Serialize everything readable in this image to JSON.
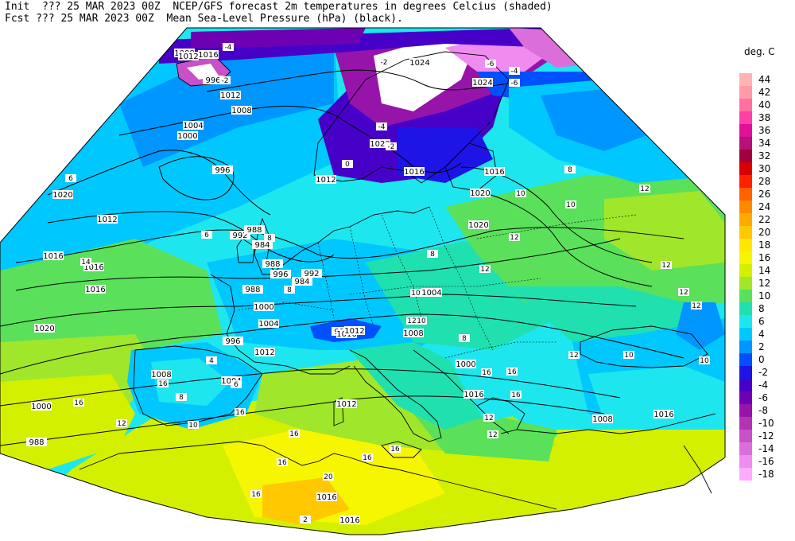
{
  "header": {
    "init_line": "Init  ??? 25 MAR 2023 00Z  NCEP/GFS forecast 2m temperatures in degrees Celcius (shaded)",
    "fcst_line": "Fcst ??? 25 MAR 2023 00Z  Mean Sea-Level Pressure (hPa) (black)."
  },
  "legend": {
    "title": "deg. C",
    "entries": [
      {
        "label": "44",
        "color": "#ffb3b3"
      },
      {
        "label": "42",
        "color": "#ff9aa8"
      },
      {
        "label": "40",
        "color": "#ff70a0"
      },
      {
        "label": "38",
        "color": "#ff3fa8"
      },
      {
        "label": "36",
        "color": "#e0109a"
      },
      {
        "label": "34",
        "color": "#b8107a"
      },
      {
        "label": "32",
        "color": "#a00040"
      },
      {
        "label": "30",
        "color": "#d80000"
      },
      {
        "label": "28",
        "color": "#ff2000"
      },
      {
        "label": "26",
        "color": "#ff6000"
      },
      {
        "label": "24",
        "color": "#ff8a00"
      },
      {
        "label": "22",
        "color": "#ffaa00"
      },
      {
        "label": "20",
        "color": "#ffc800"
      },
      {
        "label": "18",
        "color": "#ffe600"
      },
      {
        "label": "16",
        "color": "#f6f600"
      },
      {
        "label": "14",
        "color": "#d2f000"
      },
      {
        "label": "12",
        "color": "#a0e62a"
      },
      {
        "label": "10",
        "color": "#5ae05a"
      },
      {
        "label": "8",
        "color": "#20e0b0"
      },
      {
        "label": "6",
        "color": "#1ee6ee"
      },
      {
        "label": "4",
        "color": "#00c8ff"
      },
      {
        "label": "2",
        "color": "#0096ff"
      },
      {
        "label": "0",
        "color": "#0050ff"
      },
      {
        "label": "-2",
        "color": "#1e14e6"
      },
      {
        "label": "-4",
        "color": "#4600c8"
      },
      {
        "label": "-6",
        "color": "#6e00b4"
      },
      {
        "label": "-8",
        "color": "#9614aa"
      },
      {
        "label": "-10",
        "color": "#b432b4"
      },
      {
        "label": "-12",
        "color": "#c850c8"
      },
      {
        "label": "-14",
        "color": "#dc6edc"
      },
      {
        "label": "-16",
        "color": "#f08cf0"
      },
      {
        "label": "-18",
        "color": "#ffaaff"
      }
    ]
  },
  "pressure_labels": [
    "1016",
    "988",
    "996",
    "1016",
    "1012",
    "1008",
    "1004",
    "1000",
    "996",
    "992",
    "988",
    "984",
    "988",
    "996",
    "992",
    "984",
    "988",
    "1000",
    "1004",
    "996",
    "1012",
    "1008",
    "1004",
    "1000",
    "988",
    "992",
    "1016",
    "1012",
    "1008",
    "1004",
    "1000",
    "1016",
    "1012",
    "1008",
    "1016",
    "1016",
    "1016",
    "1012",
    "1016",
    "1016",
    "1016",
    "1020",
    "1020",
    "1024",
    "1024",
    "1024",
    "1020",
    "1016",
    "1012",
    "1016",
    "1020",
    "1020",
    "1008",
    "1012"
  ],
  "temperature_labels": [
    "-4",
    "-2",
    "-2",
    "-4",
    "-6",
    "-6",
    "-4",
    "0",
    "-2",
    "6",
    "6",
    "8",
    "8",
    "8",
    "10",
    "10",
    "12",
    "12",
    "12",
    "8",
    "10",
    "12",
    "12",
    "12",
    "10",
    "16",
    "16",
    "16",
    "16",
    "16",
    "16",
    "16",
    "16",
    "16",
    "16",
    "12",
    "8",
    "10",
    "10",
    "12",
    "12",
    "12",
    "20",
    "2",
    "4",
    "6",
    "8",
    "10",
    "12",
    "14",
    "16"
  ]
}
